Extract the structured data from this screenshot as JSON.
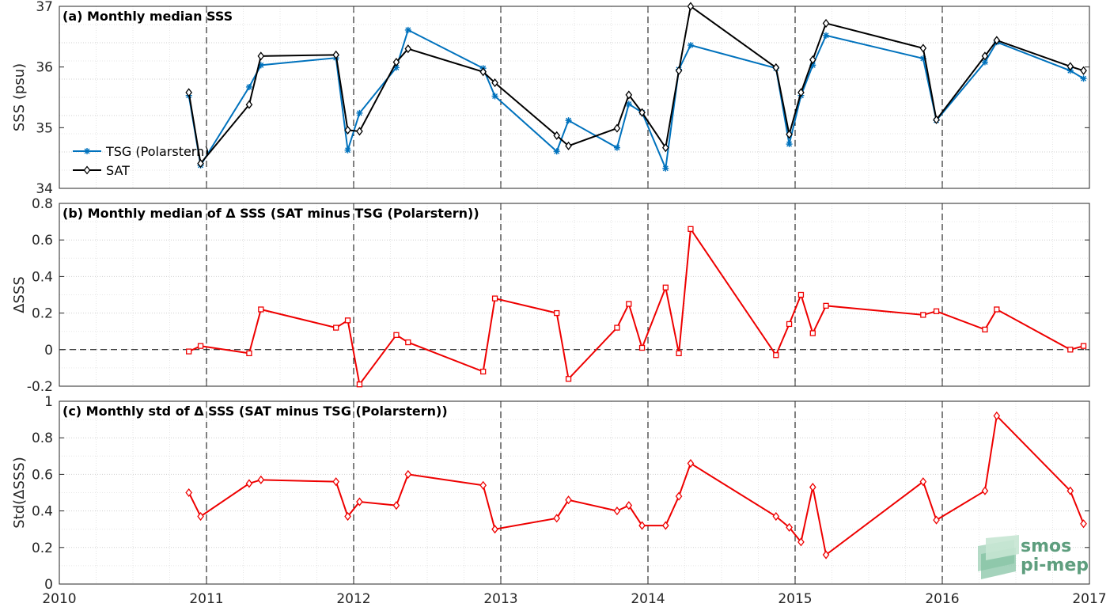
{
  "chart_data": [
    {
      "type": "line",
      "title": "(a) Monthly median SSS",
      "ylabel": "SSS (psu)",
      "xlabel": "",
      "xlim": [
        2010,
        2017
      ],
      "ylim": [
        34,
        37
      ],
      "yticks": [
        "34",
        "35",
        "36",
        "37"
      ],
      "grid": true,
      "legend_position": "lower-left",
      "series": [
        {
          "name": "TSG (Polarstern)",
          "color": "#0072BD",
          "marker": "asterisk",
          "x": [
            2010.88,
            2010.96,
            2011.29,
            2011.37,
            2011.88,
            2011.96,
            2012.04,
            2012.29,
            2012.37,
            2012.88,
            2012.96,
            2013.38,
            2013.46,
            2013.79,
            2013.87,
            2013.96,
            2014.12,
            2014.21,
            2014.29,
            2014.87,
            2014.96,
            2015.04,
            2015.12,
            2015.21,
            2015.87,
            2015.96,
            2016.29,
            2016.37,
            2016.87,
            2016.96
          ],
          "y": [
            35.53,
            34.38,
            35.67,
            36.03,
            36.15,
            34.63,
            35.24,
            35.99,
            36.61,
            35.98,
            35.52,
            34.61,
            35.12,
            34.67,
            35.39,
            35.25,
            34.33,
            35.96,
            36.36,
            35.98,
            34.73,
            35.53,
            36.03,
            36.52,
            36.14,
            35.12,
            36.08,
            36.41,
            35.94,
            35.81
          ]
        },
        {
          "name": "SAT",
          "color": "#000000",
          "marker": "diamond",
          "x": [
            2010.88,
            2010.96,
            2011.29,
            2011.37,
            2011.88,
            2011.96,
            2012.04,
            2012.29,
            2012.37,
            2012.88,
            2012.96,
            2013.38,
            2013.46,
            2013.79,
            2013.87,
            2013.96,
            2014.12,
            2014.21,
            2014.29,
            2014.87,
            2014.96,
            2015.04,
            2015.12,
            2015.21,
            2015.87,
            2015.96,
            2016.29,
            2016.37,
            2016.87,
            2016.96
          ],
          "y": [
            35.58,
            34.41,
            35.38,
            36.18,
            36.2,
            34.96,
            34.94,
            36.08,
            36.3,
            35.92,
            35.74,
            34.87,
            34.7,
            34.99,
            35.54,
            35.25,
            34.67,
            35.94,
            37.0,
            35.99,
            34.89,
            35.58,
            36.12,
            36.72,
            36.31,
            35.13,
            36.18,
            36.44,
            36.01,
            35.94
          ]
        }
      ]
    },
    {
      "type": "line",
      "title": "(b) Monthly median of Δ SSS (SAT minus TSG (Polarstern))",
      "ylabel": "ΔSSS",
      "xlabel": "",
      "xlim": [
        2010,
        2017
      ],
      "ylim": [
        -0.2,
        0.8
      ],
      "yticks": [
        "-0.2",
        "0",
        "0.2",
        "0.4",
        "0.6",
        "0.8"
      ],
      "grid": true,
      "series": [
        {
          "color": "#EE0000",
          "marker": "square",
          "x": [
            2010.88,
            2010.96,
            2011.29,
            2011.37,
            2011.88,
            2011.96,
            2012.04,
            2012.29,
            2012.37,
            2012.88,
            2012.96,
            2013.38,
            2013.46,
            2013.79,
            2013.87,
            2013.96,
            2014.12,
            2014.21,
            2014.29,
            2014.87,
            2014.96,
            2015.04,
            2015.12,
            2015.21,
            2015.87,
            2015.96,
            2016.29,
            2016.37,
            2016.87,
            2016.96
          ],
          "y": [
            -0.01,
            0.02,
            -0.02,
            0.22,
            0.12,
            0.16,
            -0.19,
            0.08,
            0.04,
            -0.12,
            0.28,
            0.2,
            -0.16,
            0.12,
            0.25,
            0.01,
            0.34,
            -0.02,
            0.66,
            -0.03,
            0.14,
            0.3,
            0.09,
            0.24,
            0.19,
            0.21,
            0.11,
            0.22,
            0.0,
            0.02
          ]
        }
      ]
    },
    {
      "type": "line",
      "title": "(c) Monthly std of Δ SSS (SAT minus TSG (Polarstern))",
      "ylabel": "Std(ΔSSS)",
      "xlabel": "",
      "xlim": [
        2010,
        2017
      ],
      "ylim": [
        0,
        1
      ],
      "xticks": [
        "2010",
        "2011",
        "2012",
        "2013",
        "2014",
        "2015",
        "2016",
        "2017"
      ],
      "yticks": [
        "0",
        "0.2",
        "0.4",
        "0.6",
        "0.8",
        "1"
      ],
      "grid": true,
      "series": [
        {
          "color": "#EE0000",
          "marker": "diamond",
          "x": [
            2010.88,
            2010.96,
            2011.29,
            2011.37,
            2011.88,
            2011.96,
            2012.04,
            2012.29,
            2012.37,
            2012.88,
            2012.96,
            2013.38,
            2013.46,
            2013.79,
            2013.87,
            2013.96,
            2014.12,
            2014.21,
            2014.29,
            2014.87,
            2014.96,
            2015.04,
            2015.12,
            2015.21,
            2015.87,
            2015.96,
            2016.29,
            2016.37,
            2016.87,
            2016.96
          ],
          "y": [
            0.5,
            0.37,
            0.55,
            0.57,
            0.56,
            0.37,
            0.45,
            0.43,
            0.6,
            0.54,
            0.3,
            0.36,
            0.46,
            0.4,
            0.43,
            0.32,
            0.32,
            0.48,
            0.66,
            0.37,
            0.31,
            0.23,
            0.53,
            0.16,
            0.56,
            0.35,
            0.51,
            0.92,
            0.51,
            0.33
          ]
        }
      ]
    }
  ],
  "logo": {
    "line1": "smos",
    "line2": "pi-mep"
  }
}
